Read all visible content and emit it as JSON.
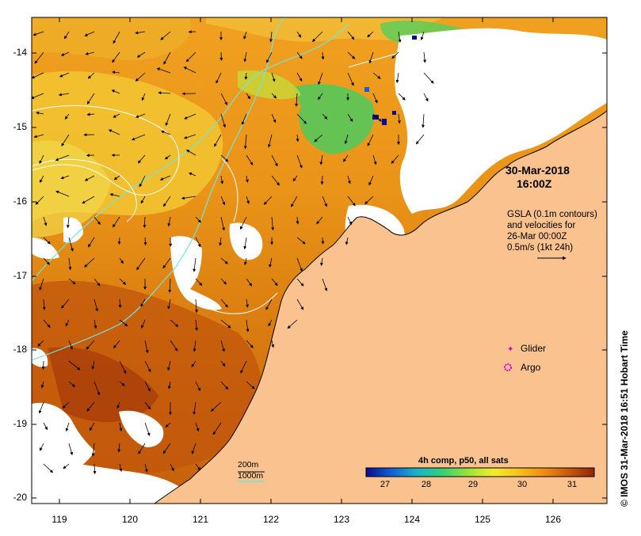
{
  "map": {
    "title_date": "30-Mar-2018",
    "title_time": "16:00Z",
    "info_lines": [
      "GSLA (0.1m contours)",
      "and velocities for",
      "26-Mar 00:00Z",
      "0.5m/s (1kt 24h)"
    ],
    "lat_ticks": [
      "-14",
      "-15",
      "-16",
      "-17",
      "-18",
      "-19",
      "-20"
    ],
    "lon_ticks": [
      "119",
      "120",
      "121",
      "122",
      "123",
      "124",
      "125",
      "126"
    ],
    "colors": {
      "land": "#f9c28f",
      "cloud": "#ffffff",
      "isobath_200": "#6fe6de",
      "isobath_1000": "#6fe6de",
      "gsla_contour": "#ffffff"
    }
  },
  "legend": {
    "glider_label": "Glider",
    "argo_label": "Argo",
    "glider_color": "#cc00cc",
    "argo_color": "#dd00dd"
  },
  "depth_key": {
    "d200": "200m",
    "d1000": "1000m"
  },
  "colorbar": {
    "title": "4h comp, p50, all sats",
    "ticks": [
      "27",
      "28",
      "29",
      "30",
      "31"
    ],
    "stops": [
      "#0b0b8f",
      "#1060d6",
      "#19b3c7",
      "#33d07a",
      "#99e23a",
      "#f2ee2a",
      "#f6c21e",
      "#ee8e12",
      "#c75a0c",
      "#8f240a"
    ]
  },
  "credit": "© IMOS 31-Mar-2018 16:51 Hobart Time"
}
